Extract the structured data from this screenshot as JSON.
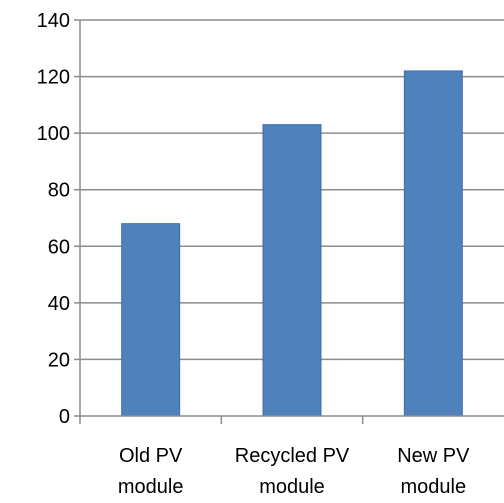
{
  "chart_data": {
    "type": "bar",
    "categories": [
      [
        "Old PV",
        "module"
      ],
      [
        "Recycled PV",
        "module"
      ],
      [
        "New PV",
        "module"
      ]
    ],
    "values": [
      68,
      103,
      122
    ],
    "ylim": [
      0,
      140
    ],
    "yticks": [
      0,
      20,
      40,
      60,
      80,
      100,
      120,
      140
    ],
    "grid": true,
    "legend": "none",
    "colors": {
      "bar": "#4f81bd",
      "bar_edge": "#3f6ea8",
      "grid": "#8c8c8c",
      "axis": "#8c8c8c"
    }
  }
}
